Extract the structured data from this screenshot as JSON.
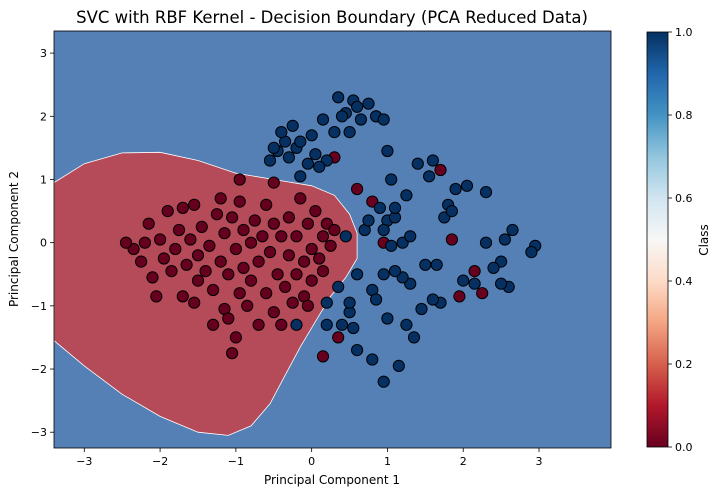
{
  "chart_data": {
    "type": "scatter",
    "title": "SVC with RBF Kernel - Decision Boundary (PCA Reduced Data)",
    "xlabel": "Principal Component 1",
    "ylabel": "Principal Component 2",
    "xlim": [
      -3.4,
      3.95
    ],
    "ylim": [
      -3.25,
      3.35
    ],
    "xticks": [
      -3,
      -2,
      -1,
      0,
      1,
      2,
      3
    ],
    "yticks": [
      -3,
      -2,
      -1,
      0,
      1,
      2,
      3
    ],
    "grid": false,
    "colorbar": {
      "label": "Class",
      "colormap": "RdBu",
      "range": [
        0,
        1
      ],
      "ticks": [
        0.0,
        0.2,
        0.4,
        0.6,
        0.8,
        1.0
      ],
      "tick_labels": [
        "0.0",
        "0.2",
        "0.4",
        "0.6",
        "0.8",
        "1.0"
      ]
    },
    "decision_regions": [
      {
        "class": 1,
        "color": "#5480b5",
        "description": "background (class 1) region"
      },
      {
        "class": 0,
        "color": "#b54a58",
        "boundary": [
          [
            -3.4,
            0.95
          ],
          [
            -3.0,
            1.25
          ],
          [
            -2.5,
            1.42
          ],
          [
            -2.0,
            1.43
          ],
          [
            -1.5,
            1.3
          ],
          [
            -1.0,
            1.1
          ],
          [
            -0.5,
            1.0
          ],
          [
            0.0,
            0.9
          ],
          [
            0.3,
            0.75
          ],
          [
            0.5,
            0.45
          ],
          [
            0.6,
            0.15
          ],
          [
            0.6,
            -0.25
          ],
          [
            0.45,
            -0.55
          ],
          [
            0.25,
            -0.85
          ],
          [
            0.05,
            -1.25
          ],
          [
            -0.15,
            -1.65
          ],
          [
            -0.35,
            -2.1
          ],
          [
            -0.55,
            -2.55
          ],
          [
            -0.8,
            -2.9
          ],
          [
            -1.1,
            -3.05
          ],
          [
            -1.5,
            -3.0
          ],
          [
            -2.0,
            -2.75
          ],
          [
            -2.5,
            -2.4
          ],
          [
            -3.0,
            -1.95
          ],
          [
            -3.4,
            -1.55
          ]
        ]
      }
    ],
    "series": [
      {
        "class": 0,
        "color": "#67001f",
        "points": [
          [
            -2.35,
            -0.1
          ],
          [
            -2.25,
            -0.3
          ],
          [
            -2.2,
            0.0
          ],
          [
            -2.15,
            0.3
          ],
          [
            -2.1,
            -0.55
          ],
          [
            -2.05,
            -0.85
          ],
          [
            -2.0,
            0.05
          ],
          [
            -1.95,
            -0.25
          ],
          [
            -1.9,
            0.5
          ],
          [
            -1.85,
            -0.45
          ],
          [
            -1.8,
            -0.1
          ],
          [
            -1.75,
            0.2
          ],
          [
            -1.7,
            -0.85
          ],
          [
            -1.7,
            0.55
          ],
          [
            -1.65,
            -0.35
          ],
          [
            -1.6,
            0.05
          ],
          [
            -1.55,
            0.6
          ],
          [
            -1.5,
            -0.2
          ],
          [
            -1.5,
            -0.6
          ],
          [
            -1.45,
            0.25
          ],
          [
            -1.4,
            -0.45
          ],
          [
            -1.35,
            -0.05
          ],
          [
            -1.3,
            -0.75
          ],
          [
            -1.3,
            -1.3
          ],
          [
            -1.25,
            0.45
          ],
          [
            -1.2,
            -0.3
          ],
          [
            -1.2,
            0.7
          ],
          [
            -1.15,
            -1.05
          ],
          [
            -1.15,
            0.15
          ],
          [
            -1.1,
            -0.5
          ],
          [
            -1.1,
            -1.2
          ],
          [
            -1.05,
            0.4
          ],
          [
            -1.0,
            -0.1
          ],
          [
            -1.0,
            -1.5
          ],
          [
            -0.95,
            0.65
          ],
          [
            -0.95,
            -0.8
          ],
          [
            -0.9,
            -0.4
          ],
          [
            -0.9,
            0.2
          ],
          [
            -0.85,
            -1.0
          ],
          [
            -0.8,
            0.0
          ],
          [
            -0.8,
            -0.6
          ],
          [
            -0.75,
            0.35
          ],
          [
            -0.7,
            -1.3
          ],
          [
            -0.7,
            -0.3
          ],
          [
            -0.65,
            0.1
          ],
          [
            -0.6,
            -0.8
          ],
          [
            -0.6,
            0.6
          ],
          [
            -0.55,
            -0.15
          ],
          [
            -0.5,
            -1.1
          ],
          [
            -0.5,
            0.3
          ],
          [
            -0.45,
            -0.5
          ],
          [
            -0.4,
            0.1
          ],
          [
            -0.4,
            -1.3
          ],
          [
            -0.35,
            -0.7
          ],
          [
            -0.3,
            0.4
          ],
          [
            -0.3,
            -0.2
          ],
          [
            -0.25,
            -0.95
          ],
          [
            -0.2,
            0.1
          ],
          [
            -0.2,
            -0.5
          ],
          [
            -0.15,
            0.7
          ],
          [
            -0.1,
            -0.3
          ],
          [
            -0.1,
            -0.85
          ],
          [
            -0.05,
            0.3
          ],
          [
            0.0,
            -0.1
          ],
          [
            0.0,
            -0.6
          ],
          [
            0.05,
            0.5
          ],
          [
            0.1,
            -0.25
          ],
          [
            0.15,
            0.1
          ],
          [
            0.15,
            -0.45
          ],
          [
            0.2,
            0.3
          ],
          [
            0.25,
            -0.05
          ],
          [
            0.3,
            0.2
          ],
          [
            -0.5,
            0.95
          ],
          [
            -0.95,
            1.0
          ],
          [
            0.3,
            1.35
          ],
          [
            0.6,
            0.85
          ],
          [
            0.8,
            0.65
          ],
          [
            -2.45,
            0.0
          ],
          [
            -1.55,
            -0.95
          ],
          [
            -0.05,
            -1.0
          ],
          [
            0.15,
            -1.8
          ],
          [
            0.35,
            -1.5
          ],
          [
            0.85,
            2.0
          ],
          [
            0.95,
            0.0
          ],
          [
            1.7,
            1.15
          ],
          [
            1.85,
            0.05
          ],
          [
            1.95,
            -0.85
          ],
          [
            2.15,
            -0.45
          ],
          [
            2.25,
            -0.8
          ],
          [
            -1.05,
            -1.75
          ]
        ]
      },
      {
        "class": 1,
        "color": "#053061",
        "points": [
          [
            0.35,
            2.3
          ],
          [
            0.45,
            2.05
          ],
          [
            0.55,
            2.25
          ],
          [
            0.65,
            1.95
          ],
          [
            0.75,
            2.2
          ],
          [
            0.85,
            2.0
          ],
          [
            0.95,
            1.95
          ],
          [
            0.5,
            1.75
          ],
          [
            0.3,
            1.75
          ],
          [
            0.15,
            1.95
          ],
          [
            0.05,
            1.4
          ],
          [
            0.0,
            1.7
          ],
          [
            -0.05,
            1.25
          ],
          [
            -0.15,
            1.05
          ],
          [
            -0.2,
            1.5
          ],
          [
            -0.25,
            1.85
          ],
          [
            -0.3,
            1.35
          ],
          [
            -0.35,
            1.6
          ],
          [
            -0.4,
            1.75
          ],
          [
            -0.45,
            1.45
          ],
          [
            -0.5,
            1.5
          ],
          [
            -0.55,
            1.3
          ],
          [
            0.2,
            1.3
          ],
          [
            0.1,
            1.2
          ],
          [
            -0.15,
            1.6
          ],
          [
            1.0,
            1.45
          ],
          [
            1.4,
            1.25
          ],
          [
            1.6,
            1.3
          ],
          [
            1.8,
            0.6
          ],
          [
            1.9,
            0.85
          ],
          [
            2.05,
            0.9
          ],
          [
            2.3,
            0.8
          ],
          [
            1.75,
            0.4
          ],
          [
            1.85,
            0.5
          ],
          [
            2.3,
            0.0
          ],
          [
            2.5,
            -0.3
          ],
          [
            2.55,
            0.05
          ],
          [
            2.65,
            0.2
          ],
          [
            2.95,
            -0.05
          ],
          [
            2.9,
            -0.15
          ],
          [
            2.6,
            -0.7
          ],
          [
            2.5,
            -0.65
          ],
          [
            2.4,
            -0.4
          ],
          [
            2.15,
            -0.65
          ],
          [
            2.0,
            -0.6
          ],
          [
            1.7,
            -0.95
          ],
          [
            1.65,
            -0.35
          ],
          [
            1.5,
            -0.35
          ],
          [
            1.45,
            -1.05
          ],
          [
            1.3,
            -0.65
          ],
          [
            1.2,
            -0.55
          ],
          [
            1.1,
            -0.45
          ],
          [
            1.05,
            -0.05
          ],
          [
            1.0,
            0.35
          ],
          [
            1.1,
            0.4
          ],
          [
            1.2,
            0.0
          ],
          [
            1.25,
            0.75
          ],
          [
            1.6,
            -0.9
          ],
          [
            1.35,
            -1.5
          ],
          [
            1.25,
            -1.3
          ],
          [
            1.15,
            -1.95
          ],
          [
            1.0,
            -1.2
          ],
          [
            0.95,
            -2.2
          ],
          [
            0.8,
            -1.85
          ],
          [
            0.6,
            -1.7
          ],
          [
            0.5,
            -1.1
          ],
          [
            0.55,
            -1.35
          ],
          [
            0.4,
            -1.3
          ],
          [
            0.2,
            -1.3
          ],
          [
            -0.2,
            -1.3
          ],
          [
            0.2,
            -0.95
          ],
          [
            0.35,
            -0.7
          ],
          [
            0.5,
            -0.95
          ],
          [
            0.8,
            -0.75
          ],
          [
            0.85,
            -0.9
          ],
          [
            0.95,
            -0.5
          ],
          [
            0.6,
            -0.5
          ],
          [
            0.45,
            0.1
          ],
          [
            0.7,
            0.2
          ],
          [
            0.75,
            0.35
          ],
          [
            0.9,
            0.55
          ],
          [
            0.95,
            0.2
          ],
          [
            1.1,
            0.55
          ],
          [
            1.3,
            0.1
          ],
          [
            1.55,
            1.05
          ],
          [
            1.05,
            1.0
          ],
          [
            0.6,
            2.15
          ],
          [
            0.4,
            2.0
          ]
        ]
      }
    ]
  }
}
